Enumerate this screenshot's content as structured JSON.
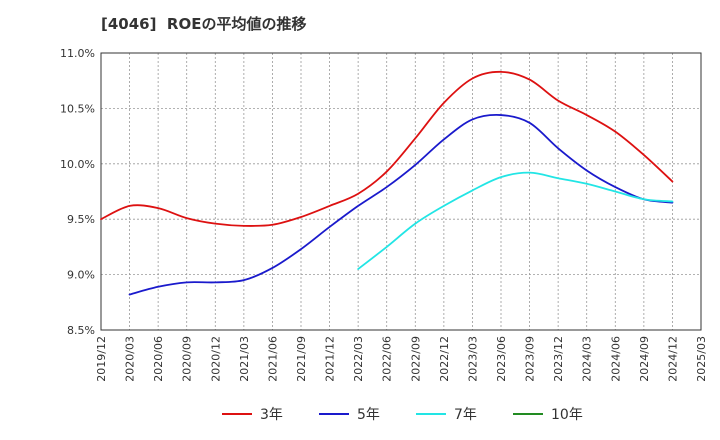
{
  "chart_data": {
    "type": "line",
    "title": "[4046]  ROEの平均値の推移",
    "xlabel": "",
    "ylabel": "",
    "ylim": [
      8.5,
      11.0
    ],
    "y_ticks": [
      "8.5%",
      "9.0%",
      "9.5%",
      "10.0%",
      "10.5%",
      "11.0%"
    ],
    "y_tick_values": [
      8.5,
      9.0,
      9.5,
      10.0,
      10.5,
      11.0
    ],
    "x_ticks": [
      "2019/12",
      "2020/03",
      "2020/06",
      "2020/09",
      "2020/12",
      "2021/03",
      "2021/06",
      "2021/09",
      "2021/12",
      "2022/03",
      "2022/06",
      "2022/09",
      "2022/12",
      "2023/03",
      "2023/06",
      "2023/09",
      "2023/12",
      "2024/03",
      "2024/06",
      "2024/09",
      "2024/12",
      "2025/03"
    ],
    "grid": true,
    "legend_position": "bottom",
    "series": [
      {
        "name": "3年",
        "color": "#dd1111",
        "x": [
          "2019/12",
          "2020/03",
          "2020/06",
          "2020/09",
          "2020/12",
          "2021/03",
          "2021/06",
          "2021/09",
          "2021/12",
          "2022/03",
          "2022/06",
          "2022/09",
          "2022/12",
          "2023/03",
          "2023/06",
          "2023/09",
          "2023/12",
          "2024/03",
          "2024/06",
          "2024/09",
          "2024/12"
        ],
        "values": [
          9.5,
          9.62,
          9.6,
          9.51,
          9.46,
          9.44,
          9.45,
          9.52,
          9.62,
          9.73,
          9.93,
          10.23,
          10.55,
          10.77,
          10.83,
          10.76,
          10.57,
          10.44,
          10.29,
          10.08,
          9.84
        ]
      },
      {
        "name": "5年",
        "color": "#1a1acc",
        "x": [
          "2020/03",
          "2020/06",
          "2020/09",
          "2020/12",
          "2021/03",
          "2021/06",
          "2021/09",
          "2021/12",
          "2022/03",
          "2022/06",
          "2022/09",
          "2022/12",
          "2023/03",
          "2023/06",
          "2023/09",
          "2023/12",
          "2024/03",
          "2024/06",
          "2024/09",
          "2024/12"
        ],
        "values": [
          8.82,
          8.89,
          8.93,
          8.93,
          8.95,
          9.06,
          9.23,
          9.43,
          9.62,
          9.79,
          9.99,
          10.22,
          10.4,
          10.44,
          10.37,
          10.14,
          9.94,
          9.79,
          9.68,
          9.65
        ]
      },
      {
        "name": "7年",
        "color": "#22e5e5",
        "x": [
          "2022/03",
          "2022/06",
          "2022/09",
          "2022/12",
          "2023/03",
          "2023/06",
          "2023/09",
          "2023/12",
          "2024/03",
          "2024/06",
          "2024/09",
          "2024/12"
        ],
        "values": [
          9.05,
          9.25,
          9.46,
          9.62,
          9.76,
          9.88,
          9.92,
          9.87,
          9.82,
          9.75,
          9.68,
          9.66
        ]
      },
      {
        "name": "10年",
        "color": "#228b22",
        "x": [],
        "values": []
      }
    ]
  }
}
